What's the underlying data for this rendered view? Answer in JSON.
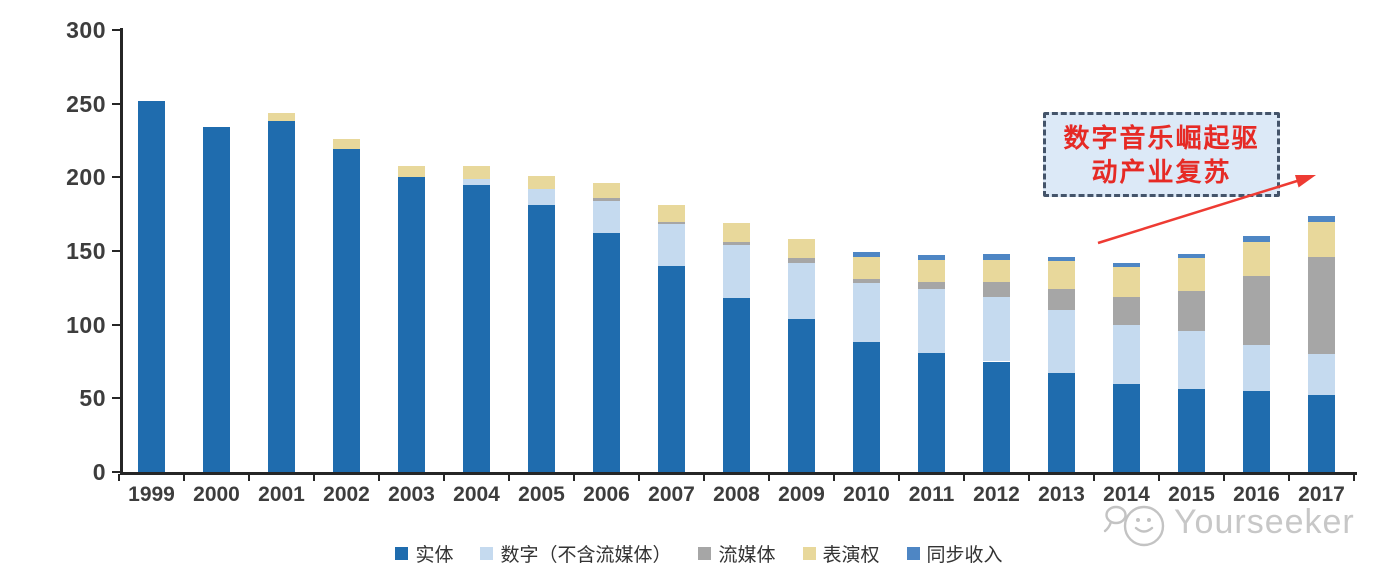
{
  "chart_data": {
    "type": "bar",
    "stacked": true,
    "title": "",
    "categories": [
      "1999",
      "2000",
      "2001",
      "2002",
      "2003",
      "2004",
      "2005",
      "2006",
      "2007",
      "2008",
      "2009",
      "2010",
      "2011",
      "2012",
      "2013",
      "2014",
      "2015",
      "2016",
      "2017"
    ],
    "series": [
      {
        "name": "实体",
        "color": "#1F6CAE",
        "values": [
          252,
          234,
          238,
          219,
          200,
          195,
          181,
          162,
          140,
          118,
          104,
          88,
          81,
          75,
          67,
          60,
          56,
          55,
          52
        ]
      },
      {
        "name": "数字（不含流媒体）",
        "color": "#C5DAEF",
        "values": [
          0,
          0,
          0,
          0,
          0,
          4,
          11,
          22,
          28,
          36,
          38,
          40,
          43,
          44,
          43,
          40,
          40,
          31,
          28
        ]
      },
      {
        "name": "流媒体",
        "color": "#A6A6A6",
        "values": [
          0,
          0,
          0,
          0,
          0,
          0,
          0,
          2,
          2,
          2,
          3,
          3,
          5,
          10,
          14,
          19,
          27,
          47,
          66
        ]
      },
      {
        "name": "表演权",
        "color": "#E8D89B",
        "values": [
          0,
          0,
          6,
          7,
          8,
          9,
          9,
          10,
          11,
          13,
          13,
          15,
          15,
          15,
          19,
          20,
          22,
          23,
          24
        ]
      },
      {
        "name": "同步收入",
        "color": "#4E86C4",
        "values": [
          0,
          0,
          0,
          0,
          0,
          0,
          0,
          0,
          0,
          0,
          0,
          3,
          3,
          4,
          3,
          3,
          3,
          4,
          4
        ]
      }
    ],
    "ylim": [
      0,
      300
    ],
    "yticks": [
      0,
      50,
      100,
      150,
      200,
      250,
      300
    ],
    "xlabel": "",
    "ylabel": "",
    "grid": false,
    "legend_position": "bottom"
  },
  "annotation": {
    "line1": "数字音乐崛起驱",
    "line2": "动产业复苏",
    "box_fill": "#DCE9F7",
    "border_color": "#44546A",
    "text_color": "#E62A25",
    "arrow_color": "#EE3B33"
  },
  "watermark": {
    "text": "Yourseeker",
    "color": "#C7C7C7"
  }
}
